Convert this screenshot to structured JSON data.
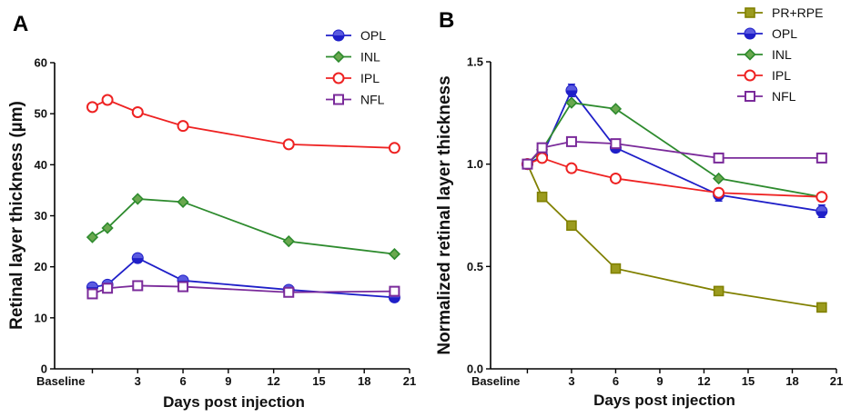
{
  "chart_data": [
    {
      "panel": "A",
      "type": "line",
      "xlabel": "Days post injection",
      "ylabel": "Retinal layer thickness (µm)",
      "xticks": [
        "Baseline",
        "3",
        "6",
        "9",
        "12",
        "15",
        "18",
        "21"
      ],
      "yticks": [
        "0",
        "10",
        "20",
        "30",
        "40",
        "50",
        "60"
      ],
      "xlim": [
        -2.5,
        21
      ],
      "ylim": [
        0,
        60
      ],
      "x": [
        0,
        1,
        3,
        6,
        13,
        20
      ],
      "series": [
        {
          "name": "OPL",
          "color": "#1f1fc8",
          "marker": "circle",
          "values": [
            16.0,
            16.5,
            21.7,
            17.3,
            15.5,
            14.0
          ],
          "errors": [
            0.4,
            0.4,
            0.7,
            0.5,
            0.4,
            0.4
          ]
        },
        {
          "name": "INL",
          "color": "#2e8b2e",
          "fill": "#6aa84f",
          "marker": "diamond",
          "values": [
            25.8,
            27.6,
            33.3,
            32.7,
            25.0,
            22.5
          ],
          "errors": [
            0,
            0,
            0,
            0,
            0,
            0
          ]
        },
        {
          "name": "IPL",
          "color": "#ee2222",
          "marker": "circle-open",
          "values": [
            51.3,
            52.7,
            50.3,
            47.6,
            44.0,
            43.3
          ],
          "errors": [
            0,
            0,
            0,
            0,
            0,
            0
          ]
        },
        {
          "name": "NFL",
          "color": "#7a2a9a",
          "marker": "square-open",
          "values": [
            14.7,
            15.8,
            16.3,
            16.1,
            15.0,
            15.2
          ],
          "errors": [
            0,
            0,
            0,
            0,
            0,
            0
          ]
        }
      ],
      "legend": [
        "OPL",
        "INL",
        "IPL",
        "NFL"
      ],
      "legend_position": "top-right"
    },
    {
      "panel": "B",
      "type": "line",
      "xlabel": "Days post injection",
      "ylabel": "Normalized retinal layer thickness",
      "xticks": [
        "Baseline",
        "3",
        "6",
        "9",
        "12",
        "15",
        "18",
        "21"
      ],
      "yticks": [
        "0.0",
        "0.5",
        "1.0",
        "1.5"
      ],
      "xlim": [
        -2.5,
        21
      ],
      "ylim": [
        0,
        1.5
      ],
      "x": [
        0,
        1,
        3,
        6,
        13,
        20
      ],
      "series": [
        {
          "name": "PR+RPE",
          "color": "#808000",
          "fill": "#9b9b1e",
          "marker": "square",
          "values": [
            1.0,
            0.84,
            0.7,
            0.49,
            0.38,
            0.3
          ],
          "errors": [
            0,
            0.01,
            0.01,
            0.01,
            0.01,
            0.01
          ]
        },
        {
          "name": "OPL",
          "color": "#1f1fc8",
          "marker": "circle",
          "values": [
            1.0,
            1.04,
            1.36,
            1.08,
            0.85,
            0.77
          ],
          "errors": [
            0,
            0.02,
            0.03,
            0.02,
            0.03,
            0.03
          ]
        },
        {
          "name": "INL",
          "color": "#2e8b2e",
          "fill": "#6aa84f",
          "marker": "diamond",
          "values": [
            1.0,
            1.07,
            1.3,
            1.27,
            0.93,
            0.84
          ],
          "errors": [
            0,
            0,
            0,
            0,
            0,
            0
          ]
        },
        {
          "name": "IPL",
          "color": "#ee2222",
          "marker": "circle-open",
          "values": [
            1.0,
            1.03,
            0.98,
            0.93,
            0.86,
            0.84
          ],
          "errors": [
            0,
            0,
            0,
            0,
            0,
            0
          ]
        },
        {
          "name": "NFL",
          "color": "#7a2a9a",
          "marker": "square-open",
          "values": [
            1.0,
            1.08,
            1.11,
            1.1,
            1.03,
            1.03
          ],
          "errors": [
            0,
            0,
            0,
            0,
            0,
            0
          ]
        }
      ],
      "legend": [
        "PR+RPE",
        "OPL",
        "INL",
        "IPL",
        "NFL"
      ],
      "legend_position": "top-right"
    }
  ]
}
